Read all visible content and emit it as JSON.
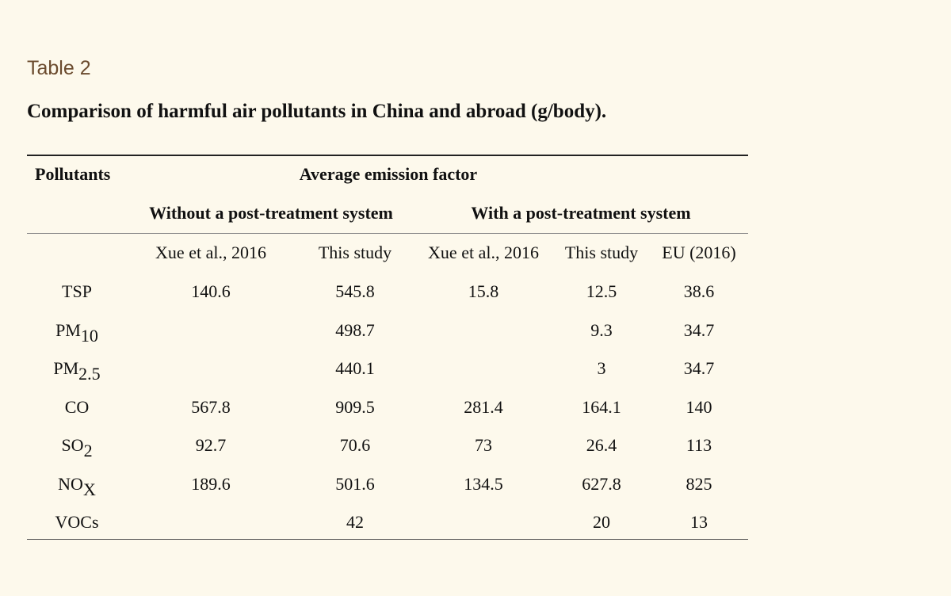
{
  "table_label": "Table 2",
  "caption": "Comparison of harmful air pollutants in China and abroad (g/body).",
  "header": {
    "pollutants": "Pollutants",
    "group": "Average emission factor",
    "without": "Without a post-treatment system",
    "with": "With a post-treatment system",
    "columns": [
      "Xue et al., 2016",
      "This study",
      "Xue et al., 2016",
      "This study",
      "EU (2016)"
    ]
  },
  "rows": [
    {
      "base": "TSP",
      "sub": "",
      "values": [
        "140.6",
        "545.8",
        "15.8",
        "12.5",
        "38.6"
      ]
    },
    {
      "base": "PM",
      "sub": "10",
      "values": [
        "",
        "498.7",
        "",
        "9.3",
        "34.7"
      ]
    },
    {
      "base": "PM",
      "sub": "2.5",
      "values": [
        "",
        "440.1",
        "",
        "3",
        "34.7"
      ]
    },
    {
      "base": "CO",
      "sub": "",
      "values": [
        "567.8",
        "909.5",
        "281.4",
        "164.1",
        "140"
      ]
    },
    {
      "base": "SO",
      "sub": "2",
      "values": [
        "92.7",
        "70.6",
        "73",
        "26.4",
        "113"
      ]
    },
    {
      "base": "NO",
      "sub": "X",
      "values": [
        "189.6",
        "501.6",
        "134.5",
        "627.8",
        "825"
      ]
    },
    {
      "base": "VOCs",
      "sub": "",
      "values": [
        "",
        "42",
        "",
        "20",
        "13"
      ]
    }
  ]
}
